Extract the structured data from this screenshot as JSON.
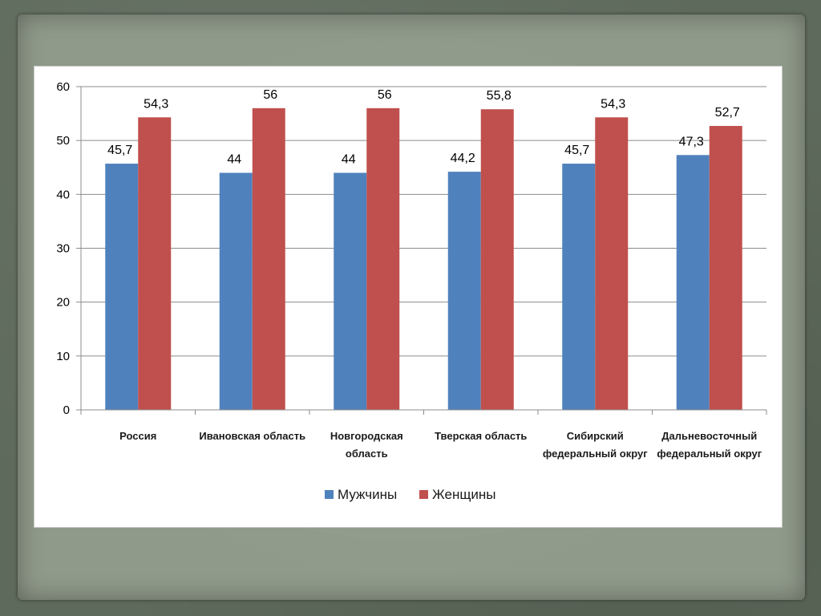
{
  "chart_data": {
    "type": "bar",
    "categories": [
      [
        "Россия"
      ],
      [
        "Ивановская область"
      ],
      [
        "Новгородская",
        "область"
      ],
      [
        "Тверская область"
      ],
      [
        "Сибирский",
        "федеральный округ"
      ],
      [
        "Дальневосточный",
        "федеральный округ"
      ]
    ],
    "series": [
      {
        "name": "Мужчины",
        "values": [
          45.7,
          44,
          44,
          44.2,
          45.7,
          47.3
        ],
        "labels": [
          "45,7",
          "44",
          "44",
          "44,2",
          "45,7",
          "47,3"
        ],
        "color": "#4f81bd"
      },
      {
        "name": "Женщины",
        "values": [
          54.3,
          56,
          56,
          55.8,
          54.3,
          52.7
        ],
        "labels": [
          "54,3",
          "56",
          "56",
          "55,8",
          "54,3",
          "52,7"
        ],
        "color": "#c0504d"
      }
    ],
    "ylim": [
      0,
      60
    ],
    "yticks": [
      0,
      10,
      20,
      30,
      40,
      50,
      60
    ],
    "grid": true,
    "legend": "bottom"
  }
}
